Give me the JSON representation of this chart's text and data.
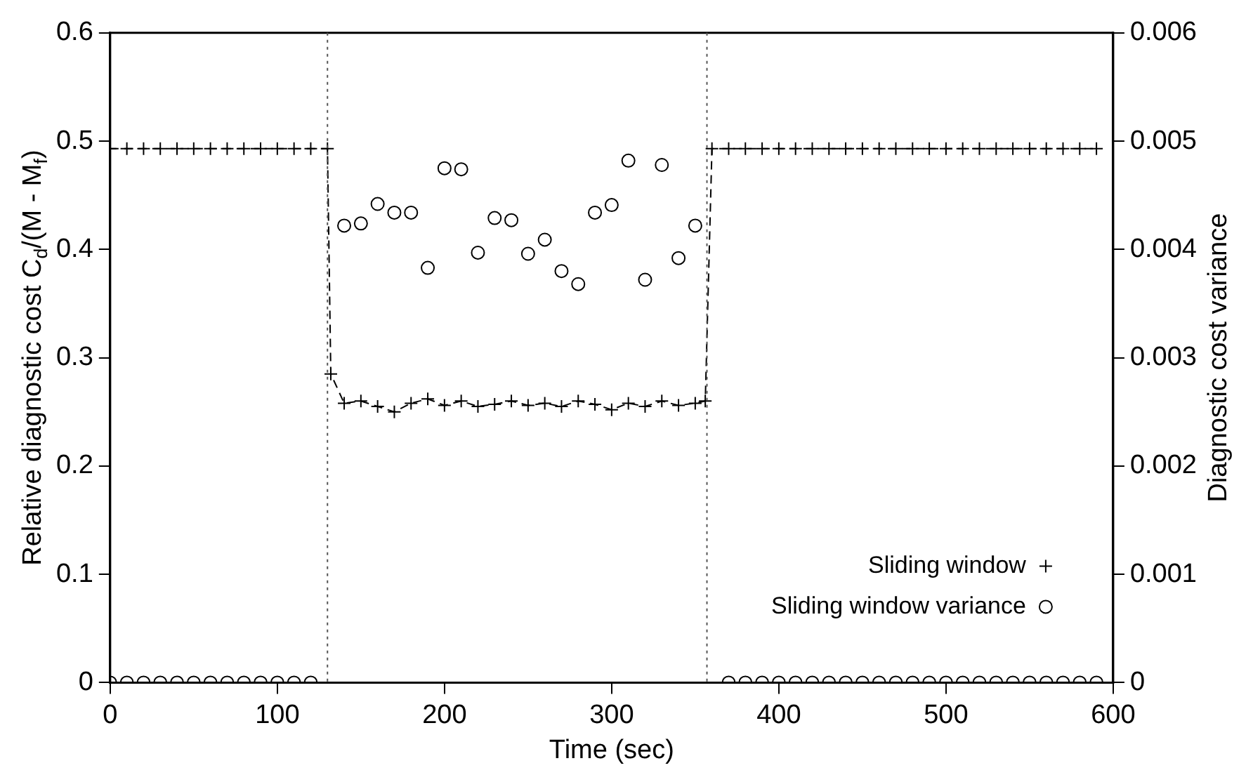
{
  "chart_data": {
    "type": "line",
    "xlabel": "Time (sec)",
    "ylabel": "Relative diagnostic cost C$_{d}$/(M - M$_{f}$)",
    "y2label": "Diagnostic cost variance",
    "xlim": [
      0,
      600
    ],
    "xticks": [
      0,
      100,
      200,
      300,
      400,
      500,
      600
    ],
    "ylim": [
      0,
      0.6
    ],
    "yticks": [
      0,
      0.1,
      0.2,
      0.3,
      0.4,
      0.5,
      0.6
    ],
    "y2lim": [
      0,
      0.006
    ],
    "y2ticks": [
      0,
      0.001,
      0.002,
      0.003,
      0.004,
      0.005,
      0.006
    ],
    "grid": false,
    "legend": "bottom right",
    "series": [
      {
        "name": "Sliding window",
        "type": "line",
        "color": "#000000",
        "marker": "cross",
        "line_style": "dashed",
        "x": [
          0,
          10,
          20,
          30,
          40,
          50,
          60,
          70,
          80,
          90,
          100,
          110,
          120,
          130,
          132,
          140,
          150,
          160,
          170,
          180,
          190,
          200,
          210,
          220,
          230,
          240,
          250,
          260,
          270,
          280,
          290,
          300,
          310,
          320,
          330,
          340,
          350,
          356,
          360,
          370,
          380,
          390,
          400,
          410,
          420,
          430,
          440,
          450,
          460,
          470,
          480,
          490,
          500,
          510,
          520,
          530,
          540,
          550,
          560,
          570,
          580,
          590
        ],
        "values": [
          0.493,
          0.493,
          0.493,
          0.493,
          0.493,
          0.493,
          0.493,
          0.493,
          0.493,
          0.493,
          0.493,
          0.493,
          0.493,
          0.493,
          0.285,
          0.258,
          0.26,
          0.255,
          0.25,
          0.258,
          0.262,
          0.256,
          0.26,
          0.255,
          0.257,
          0.26,
          0.256,
          0.258,
          0.255,
          0.26,
          0.257,
          0.252,
          0.258,
          0.255,
          0.26,
          0.256,
          0.258,
          0.26,
          0.493,
          0.493,
          0.493,
          0.493,
          0.493,
          0.493,
          0.493,
          0.493,
          0.493,
          0.493,
          0.493,
          0.493,
          0.493,
          0.493,
          0.493,
          0.493,
          0.493,
          0.493,
          0.493,
          0.493,
          0.493,
          0.493,
          0.493,
          0.493
        ]
      },
      {
        "name": "Sliding window variance",
        "type": "scatter",
        "axis": "y2",
        "color": "#000000",
        "marker": "circle",
        "x": [
          0,
          10,
          20,
          30,
          40,
          50,
          60,
          70,
          80,
          90,
          100,
          110,
          120,
          140,
          150,
          160,
          170,
          180,
          190,
          200,
          210,
          220,
          230,
          240,
          250,
          260,
          270,
          280,
          290,
          300,
          310,
          320,
          330,
          340,
          350,
          370,
          380,
          390,
          400,
          410,
          420,
          430,
          440,
          450,
          460,
          470,
          480,
          490,
          500,
          510,
          520,
          530,
          540,
          550,
          560,
          570,
          580,
          590
        ],
        "values": [
          0,
          0,
          0,
          0,
          0,
          0,
          0,
          0,
          0,
          0,
          0,
          0,
          0,
          0.00422,
          0.00424,
          0.00442,
          0.00434,
          0.00434,
          0.00383,
          0.00475,
          0.00474,
          0.00397,
          0.00429,
          0.00427,
          0.00396,
          0.00409,
          0.0038,
          0.00368,
          0.00434,
          0.00441,
          0.00482,
          0.00372,
          0.00478,
          0.00392,
          0.00422,
          0,
          0,
          0,
          0,
          0,
          0,
          0,
          0,
          0,
          0,
          0,
          0,
          0,
          0,
          0,
          0,
          0,
          0,
          0,
          0,
          0,
          0,
          0
        ]
      }
    ],
    "ref_lines": [
      {
        "axis": "x",
        "value": 130,
        "color": "#555555",
        "line_style": "dotted"
      },
      {
        "axis": "x",
        "value": 357,
        "color": "#555555",
        "line_style": "dotted"
      }
    ]
  }
}
